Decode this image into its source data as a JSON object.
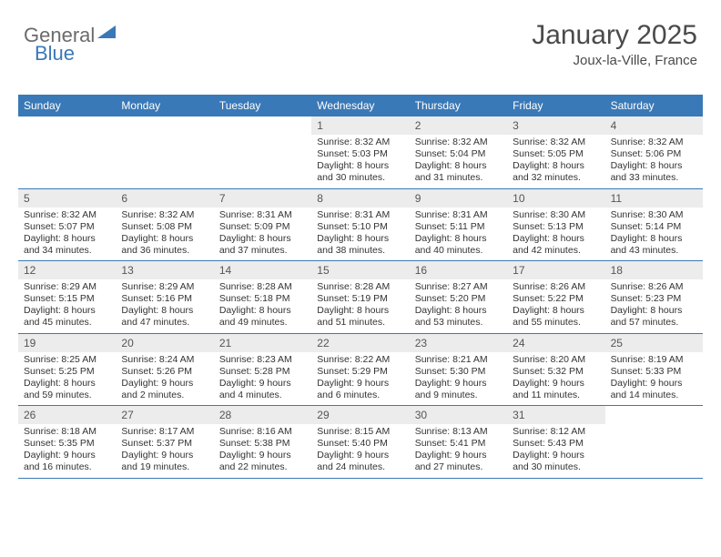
{
  "logo": {
    "text1": "General",
    "text2": "Blue"
  },
  "header": {
    "month": "January 2025",
    "location": "Joux-la-Ville, France"
  },
  "colors": {
    "header_bg": "#3a79b7",
    "header_text": "#ffffff",
    "daynum_bg": "#ececec",
    "text": "#333333",
    "logo_gray": "#6b6b6b",
    "week_border": "#3a79b7"
  },
  "day_names": [
    "Sunday",
    "Monday",
    "Tuesday",
    "Wednesday",
    "Thursday",
    "Friday",
    "Saturday"
  ],
  "weeks": [
    [
      null,
      null,
      null,
      {
        "n": "1",
        "sr": "8:32 AM",
        "ss": "5:03 PM",
        "dh": "8",
        "dm": "30"
      },
      {
        "n": "2",
        "sr": "8:32 AM",
        "ss": "5:04 PM",
        "dh": "8",
        "dm": "31"
      },
      {
        "n": "3",
        "sr": "8:32 AM",
        "ss": "5:05 PM",
        "dh": "8",
        "dm": "32"
      },
      {
        "n": "4",
        "sr": "8:32 AM",
        "ss": "5:06 PM",
        "dh": "8",
        "dm": "33"
      }
    ],
    [
      {
        "n": "5",
        "sr": "8:32 AM",
        "ss": "5:07 PM",
        "dh": "8",
        "dm": "34"
      },
      {
        "n": "6",
        "sr": "8:32 AM",
        "ss": "5:08 PM",
        "dh": "8",
        "dm": "36"
      },
      {
        "n": "7",
        "sr": "8:31 AM",
        "ss": "5:09 PM",
        "dh": "8",
        "dm": "37"
      },
      {
        "n": "8",
        "sr": "8:31 AM",
        "ss": "5:10 PM",
        "dh": "8",
        "dm": "38"
      },
      {
        "n": "9",
        "sr": "8:31 AM",
        "ss": "5:11 PM",
        "dh": "8",
        "dm": "40"
      },
      {
        "n": "10",
        "sr": "8:30 AM",
        "ss": "5:13 PM",
        "dh": "8",
        "dm": "42"
      },
      {
        "n": "11",
        "sr": "8:30 AM",
        "ss": "5:14 PM",
        "dh": "8",
        "dm": "43"
      }
    ],
    [
      {
        "n": "12",
        "sr": "8:29 AM",
        "ss": "5:15 PM",
        "dh": "8",
        "dm": "45"
      },
      {
        "n": "13",
        "sr": "8:29 AM",
        "ss": "5:16 PM",
        "dh": "8",
        "dm": "47"
      },
      {
        "n": "14",
        "sr": "8:28 AM",
        "ss": "5:18 PM",
        "dh": "8",
        "dm": "49"
      },
      {
        "n": "15",
        "sr": "8:28 AM",
        "ss": "5:19 PM",
        "dh": "8",
        "dm": "51"
      },
      {
        "n": "16",
        "sr": "8:27 AM",
        "ss": "5:20 PM",
        "dh": "8",
        "dm": "53"
      },
      {
        "n": "17",
        "sr": "8:26 AM",
        "ss": "5:22 PM",
        "dh": "8",
        "dm": "55"
      },
      {
        "n": "18",
        "sr": "8:26 AM",
        "ss": "5:23 PM",
        "dh": "8",
        "dm": "57"
      }
    ],
    [
      {
        "n": "19",
        "sr": "8:25 AM",
        "ss": "5:25 PM",
        "dh": "8",
        "dm": "59"
      },
      {
        "n": "20",
        "sr": "8:24 AM",
        "ss": "5:26 PM",
        "dh": "9",
        "dm": "2"
      },
      {
        "n": "21",
        "sr": "8:23 AM",
        "ss": "5:28 PM",
        "dh": "9",
        "dm": "4"
      },
      {
        "n": "22",
        "sr": "8:22 AM",
        "ss": "5:29 PM",
        "dh": "9",
        "dm": "6"
      },
      {
        "n": "23",
        "sr": "8:21 AM",
        "ss": "5:30 PM",
        "dh": "9",
        "dm": "9"
      },
      {
        "n": "24",
        "sr": "8:20 AM",
        "ss": "5:32 PM",
        "dh": "9",
        "dm": "11"
      },
      {
        "n": "25",
        "sr": "8:19 AM",
        "ss": "5:33 PM",
        "dh": "9",
        "dm": "14"
      }
    ],
    [
      {
        "n": "26",
        "sr": "8:18 AM",
        "ss": "5:35 PM",
        "dh": "9",
        "dm": "16"
      },
      {
        "n": "27",
        "sr": "8:17 AM",
        "ss": "5:37 PM",
        "dh": "9",
        "dm": "19"
      },
      {
        "n": "28",
        "sr": "8:16 AM",
        "ss": "5:38 PM",
        "dh": "9",
        "dm": "22"
      },
      {
        "n": "29",
        "sr": "8:15 AM",
        "ss": "5:40 PM",
        "dh": "9",
        "dm": "24"
      },
      {
        "n": "30",
        "sr": "8:13 AM",
        "ss": "5:41 PM",
        "dh": "9",
        "dm": "27"
      },
      {
        "n": "31",
        "sr": "8:12 AM",
        "ss": "5:43 PM",
        "dh": "9",
        "dm": "30"
      },
      null
    ]
  ],
  "labels": {
    "sunrise": "Sunrise: ",
    "sunset": "Sunset: ",
    "daylight": "Daylight: ",
    "hours": " hours",
    "and": "and ",
    "minutes": " minutes."
  }
}
